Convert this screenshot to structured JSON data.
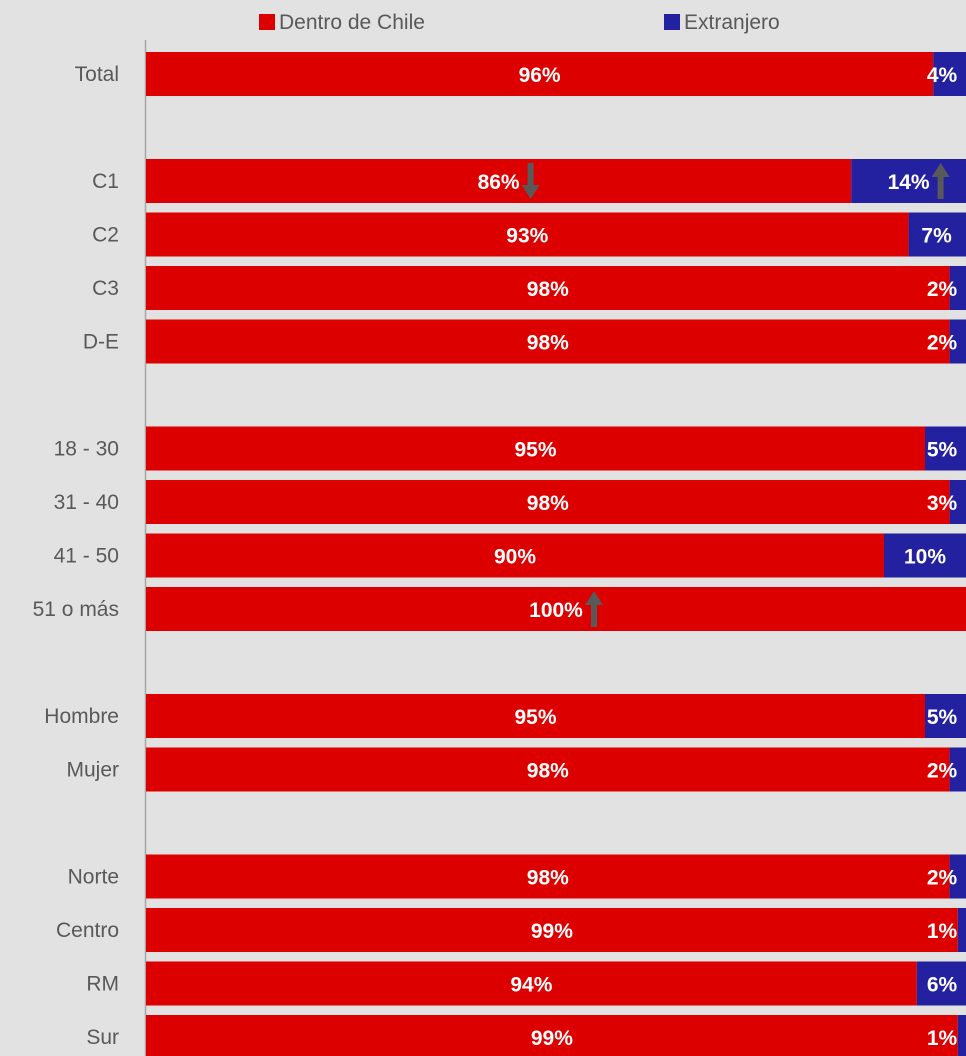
{
  "chart_data": {
    "type": "bar",
    "orientation": "horizontal",
    "stacked": true,
    "normalized": true,
    "title": "",
    "xlabel": "",
    "ylabel": "",
    "xlim": [
      0,
      100
    ],
    "grid": false,
    "legend": {
      "placement": "top"
    },
    "categories": [
      "Total",
      "",
      "C1",
      "C2",
      "C3",
      "D-E",
      "",
      "18 - 30",
      "31 - 40",
      "41 - 50",
      "51 o más",
      "",
      "Hombre",
      "Mujer",
      "",
      "Norte",
      "Centro",
      "RM",
      "Sur"
    ],
    "series": [
      {
        "name": "Dentro de Chile",
        "color": "#dd0000",
        "values": [
          96,
          null,
          86,
          93,
          98,
          98,
          null,
          95,
          98,
          90,
          100,
          null,
          95,
          98,
          null,
          98,
          99,
          94,
          99
        ],
        "labels": [
          "96%",
          "",
          "86%",
          "93%",
          "98%",
          "98%",
          "",
          "95%",
          "98%",
          "90%",
          "100%",
          "",
          "95%",
          "98%",
          "",
          "98%",
          "99%",
          "94%",
          "99%"
        ]
      },
      {
        "name": "Extranjero",
        "color": "#2321a0",
        "values": [
          4,
          null,
          14,
          7,
          2,
          2,
          null,
          5,
          3,
          10,
          0,
          null,
          5,
          2,
          null,
          2,
          1,
          6,
          1
        ],
        "labels": [
          "4%",
          "",
          "14%",
          "7%",
          "2%",
          "2%",
          "",
          "5%",
          "3%",
          "10%",
          "",
          "",
          "5%",
          "2%",
          "",
          "2%",
          "1%",
          "6%",
          "1%"
        ]
      }
    ],
    "annotations": [
      {
        "category": "C1",
        "series": "Dentro de Chile",
        "marker": "arrow-down"
      },
      {
        "category": "C1",
        "series": "Extranjero",
        "marker": "arrow-up"
      },
      {
        "category": "51 o más",
        "series": "Dentro de Chile",
        "marker": "arrow-up"
      }
    ]
  },
  "colors": {
    "background": "#e2e2e2",
    "axis": "#a6a6a6",
    "arrow": "#595959",
    "label_text": "#ffffff",
    "category_text": "#595959"
  }
}
